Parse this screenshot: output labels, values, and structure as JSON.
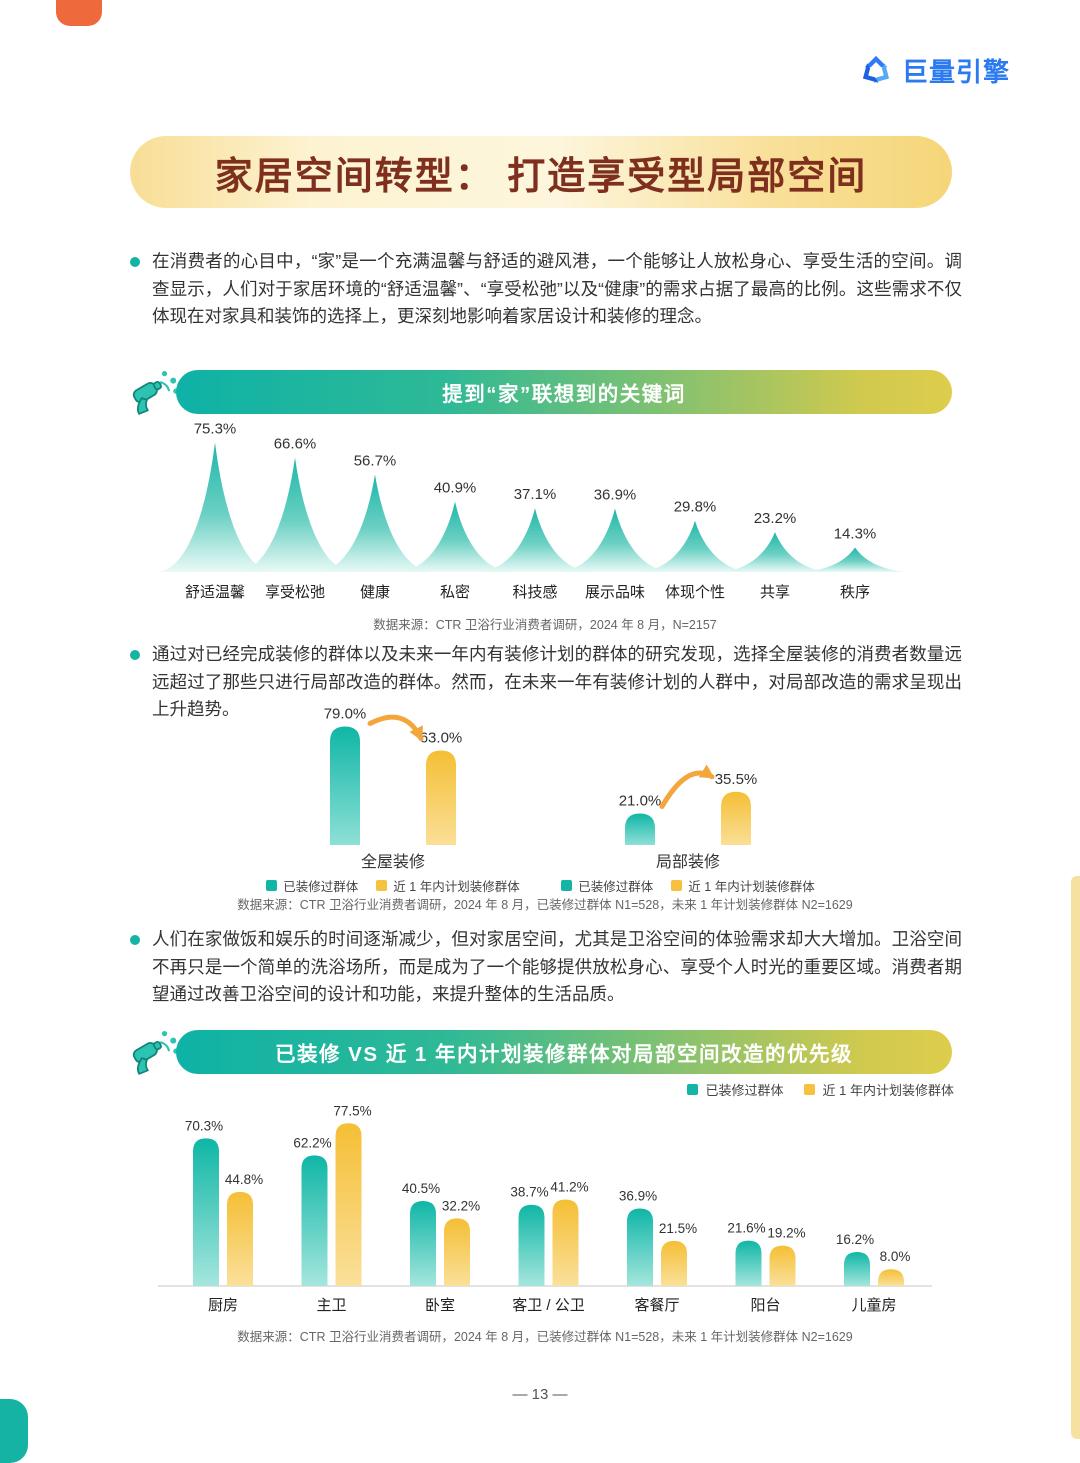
{
  "brand": {
    "name": "巨量引擎",
    "color": "#2B7BF0"
  },
  "title": "家居空间转型： 打造享受型局部空间",
  "page_number": "— 13 —",
  "paragraphs": [
    "在消费者的心目中，“家”是一个充满温馨与舒适的避风港，一个能够让人放松身心、享受生活的空间。调查显示，人们对于家居环境的“舒适温馨”、“享受松弛”以及“健康”的需求占据了最高的比例。这些需求不仅体现在对家具和装饰的选择上，更深刻地影响着家居设计和装修的理念。",
    "通过对已经完成装修的群体以及未来一年内有装修计划的群体的研究发现，选择全屋装修的消费者数量远远超过了那些只进行局部改造的群体。然而，在未来一年有装修计划的人群中，对局部改造的需求呈现出上升趋势。",
    "人们在家做饭和娱乐的时间逐渐减少，但对家居空间，尤其是卫浴空间的体验需求却大大增加。卫浴空间不再只是一个简单的洗浴场所，而是成为了一个能够提供放松身心、享受个人时光的重要区域。消费者期望通过改善卫浴空间的设计和功能，来提升整体的生活品质。"
  ],
  "colors": {
    "teal": "#14B5A5",
    "yellow": "#F5C13E",
    "banner_title_text": "#7E2F1E",
    "arrow_orange": "#F2A63C"
  },
  "chart_data": [
    {
      "type": "area",
      "title": "提到“家”联想到的关键词",
      "unit": "%",
      "categories": [
        "舒适温馨",
        "享受松弛",
        "健康",
        "私密",
        "科技感",
        "展示品味",
        "体现个性",
        "共享",
        "秩序"
      ],
      "values": [
        75.3,
        66.6,
        56.7,
        40.9,
        37.1,
        36.9,
        29.8,
        23.2,
        14.3
      ],
      "source": "数据来源：CTR 卫浴行业消费者调研，2024 年 8 月，N=2157"
    },
    {
      "type": "bar",
      "unit": "%",
      "legend": [
        "已装修过群体",
        "近 1 年内计划装修群体"
      ],
      "groups": [
        {
          "label": "全屋装修",
          "values": [
            79.0,
            63.0
          ],
          "trend": "down"
        },
        {
          "label": "局部装修",
          "values": [
            21.0,
            35.5
          ],
          "trend": "up"
        }
      ],
      "source": "数据来源：CTR 卫浴行业消费者调研，2024 年 8 月，已装修过群体 N1=528，未来 1 年计划装修群体 N2=1629"
    },
    {
      "type": "bar",
      "title": "已装修 VS 近 1 年内计划装修群体对局部空间改造的优先级",
      "unit": "%",
      "legend": [
        "已装修过群体",
        "近 1 年内计划装修群体"
      ],
      "categories": [
        "厨房",
        "主卫",
        "卧室",
        "客卫 / 公卫",
        "客餐厅",
        "阳台",
        "儿童房"
      ],
      "series": [
        {
          "name": "已装修过群体",
          "values": [
            70.3,
            62.2,
            40.5,
            38.7,
            36.9,
            21.6,
            16.2
          ]
        },
        {
          "name": "近 1 年内计划装修群体",
          "values": [
            44.8,
            77.5,
            32.2,
            41.2,
            21.5,
            19.2,
            8.0
          ]
        }
      ],
      "source": "数据来源：CTR 卫浴行业消费者调研，2024 年 8 月，已装修过群体 N1=528，未来 1 年计划装修群体 N2=1629"
    }
  ]
}
